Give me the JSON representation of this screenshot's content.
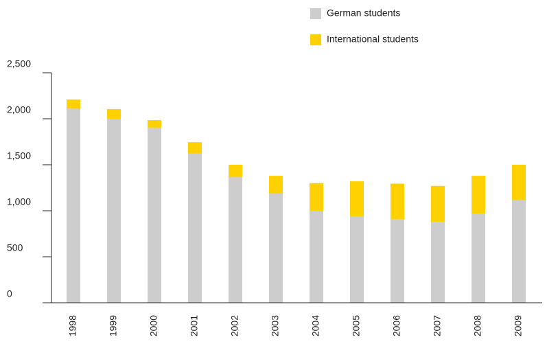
{
  "chart_data": {
    "type": "stacked_bar",
    "categories": [
      "1998",
      "1999",
      "2000",
      "2001",
      "2002",
      "2003",
      "2004",
      "2005",
      "2006",
      "2007",
      "2008",
      "2009"
    ],
    "series": [
      {
        "name": "German students",
        "color": "#cdcdcd",
        "values": [
          2110,
          2000,
          1900,
          1620,
          1365,
          1190,
          1000,
          940,
          910,
          880,
          970,
          1120
        ]
      },
      {
        "name": "International students",
        "color": "#ffd100",
        "values": [
          100,
          105,
          85,
          125,
          135,
          190,
          300,
          380,
          385,
          390,
          410,
          380
        ]
      }
    ],
    "ylim": [
      0,
      2500
    ],
    "yticks": [
      0,
      500,
      {
        "value": 1000,
        "label": "1,000"
      },
      {
        "value": 1500,
        "label": "1,500"
      },
      {
        "value": 2000,
        "label": "2,000"
      },
      {
        "value": 2500,
        "label": "2,500"
      }
    ],
    "legend": "top-right",
    "grid": false
  }
}
